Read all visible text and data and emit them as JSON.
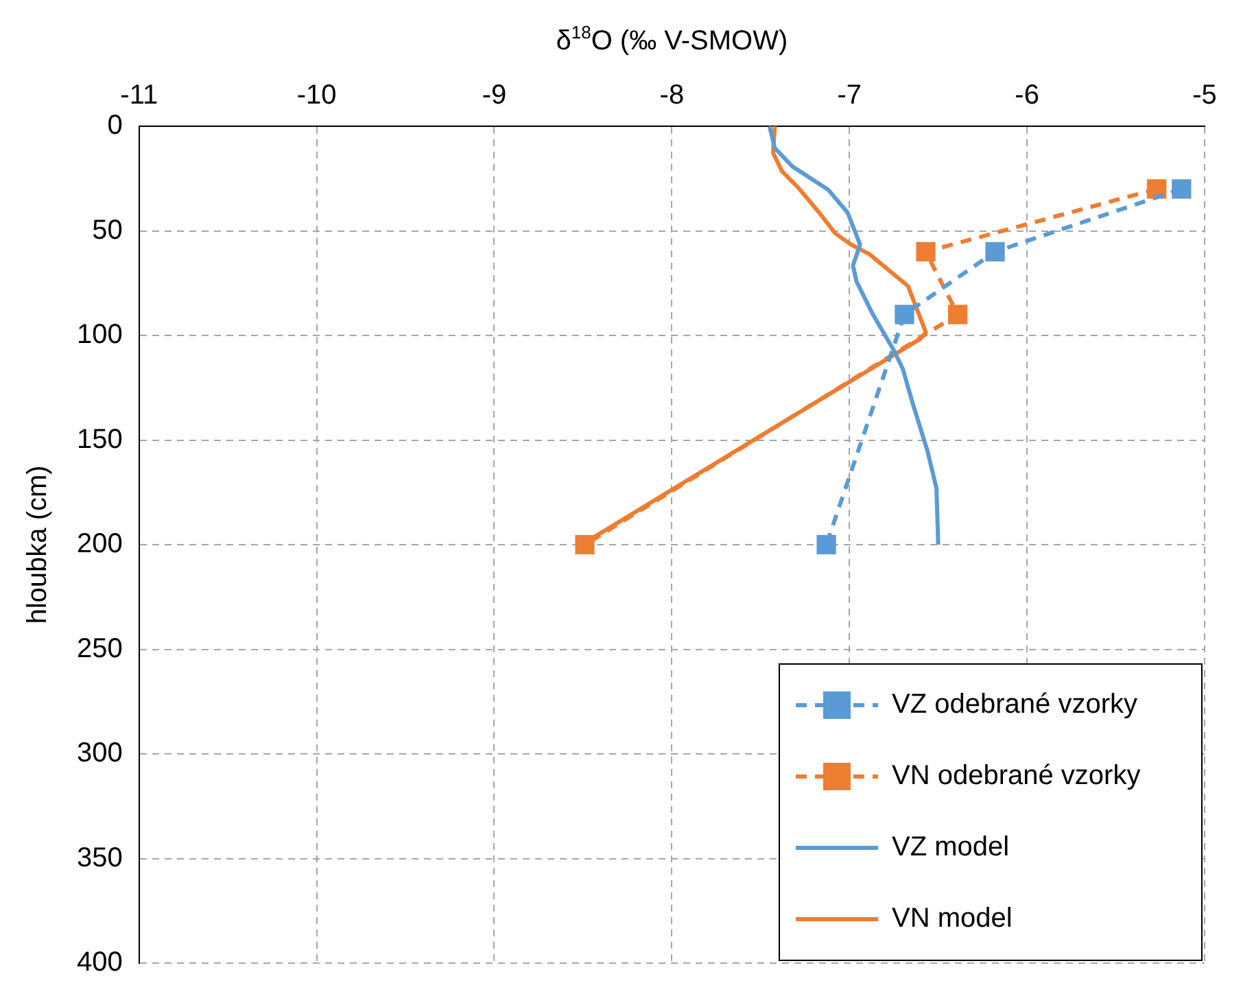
{
  "chart_data": {
    "type": "line",
    "xlabel": "δ$^{18}$O (‰ V-SMOW)",
    "ylabel": "hloubka (cm)",
    "xlim": [
      -11,
      -5
    ],
    "xticks": [
      -11,
      -10,
      -9,
      -8,
      -7,
      -6,
      -5
    ],
    "ylim": [
      400,
      0
    ],
    "yticks": [
      0,
      50,
      100,
      150,
      200,
      250,
      300,
      350,
      400
    ],
    "grid": true,
    "legend": "bottom right",
    "series": [
      {
        "name": "VZ odebrané vzorky",
        "type": "line",
        "color": "#5b9bd5",
        "marker": "square",
        "line_style": "dashed",
        "x": [
          -5.13,
          -6.18,
          -6.69,
          -7.13
        ],
        "values": [
          30,
          60,
          90,
          200
        ]
      },
      {
        "name": "VN odebrané vzorky",
        "type": "line",
        "color": "#ed7d31",
        "marker": "square",
        "line_style": "dashed",
        "x": [
          -5.27,
          -6.57,
          -6.39,
          -8.49
        ],
        "values": [
          30,
          60,
          90,
          200
        ]
      },
      {
        "name": "VZ model",
        "type": "line",
        "color": "#5b9bd5",
        "marker": "none",
        "line_style": "solid",
        "x": [
          -7.45,
          -7.42,
          -7.32,
          -7.12,
          -7.01,
          -6.94,
          -6.98,
          -6.96,
          -6.87,
          -6.75,
          -6.7,
          -6.64,
          -6.56,
          -6.51,
          -6.5
        ],
        "values": [
          0,
          10.5,
          19.3,
          30.3,
          41.3,
          56.6,
          66.6,
          74.2,
          89.6,
          107.1,
          115.9,
          133.5,
          155.4,
          173,
          200
        ]
      },
      {
        "name": "VN model",
        "type": "line",
        "color": "#ed7d31",
        "marker": "none",
        "line_style": "solid",
        "x": [
          -7.42,
          -7.43,
          -7.38,
          -7.29,
          -7.17,
          -7.08,
          -6.99,
          -6.89,
          -6.67,
          -6.62,
          -6.57,
          -6.6,
          -8.45
        ],
        "values": [
          0,
          12.7,
          21.5,
          29.2,
          41.3,
          51.2,
          56.6,
          61,
          76.4,
          87.4,
          98.4,
          101.6,
          197
        ]
      }
    ]
  }
}
